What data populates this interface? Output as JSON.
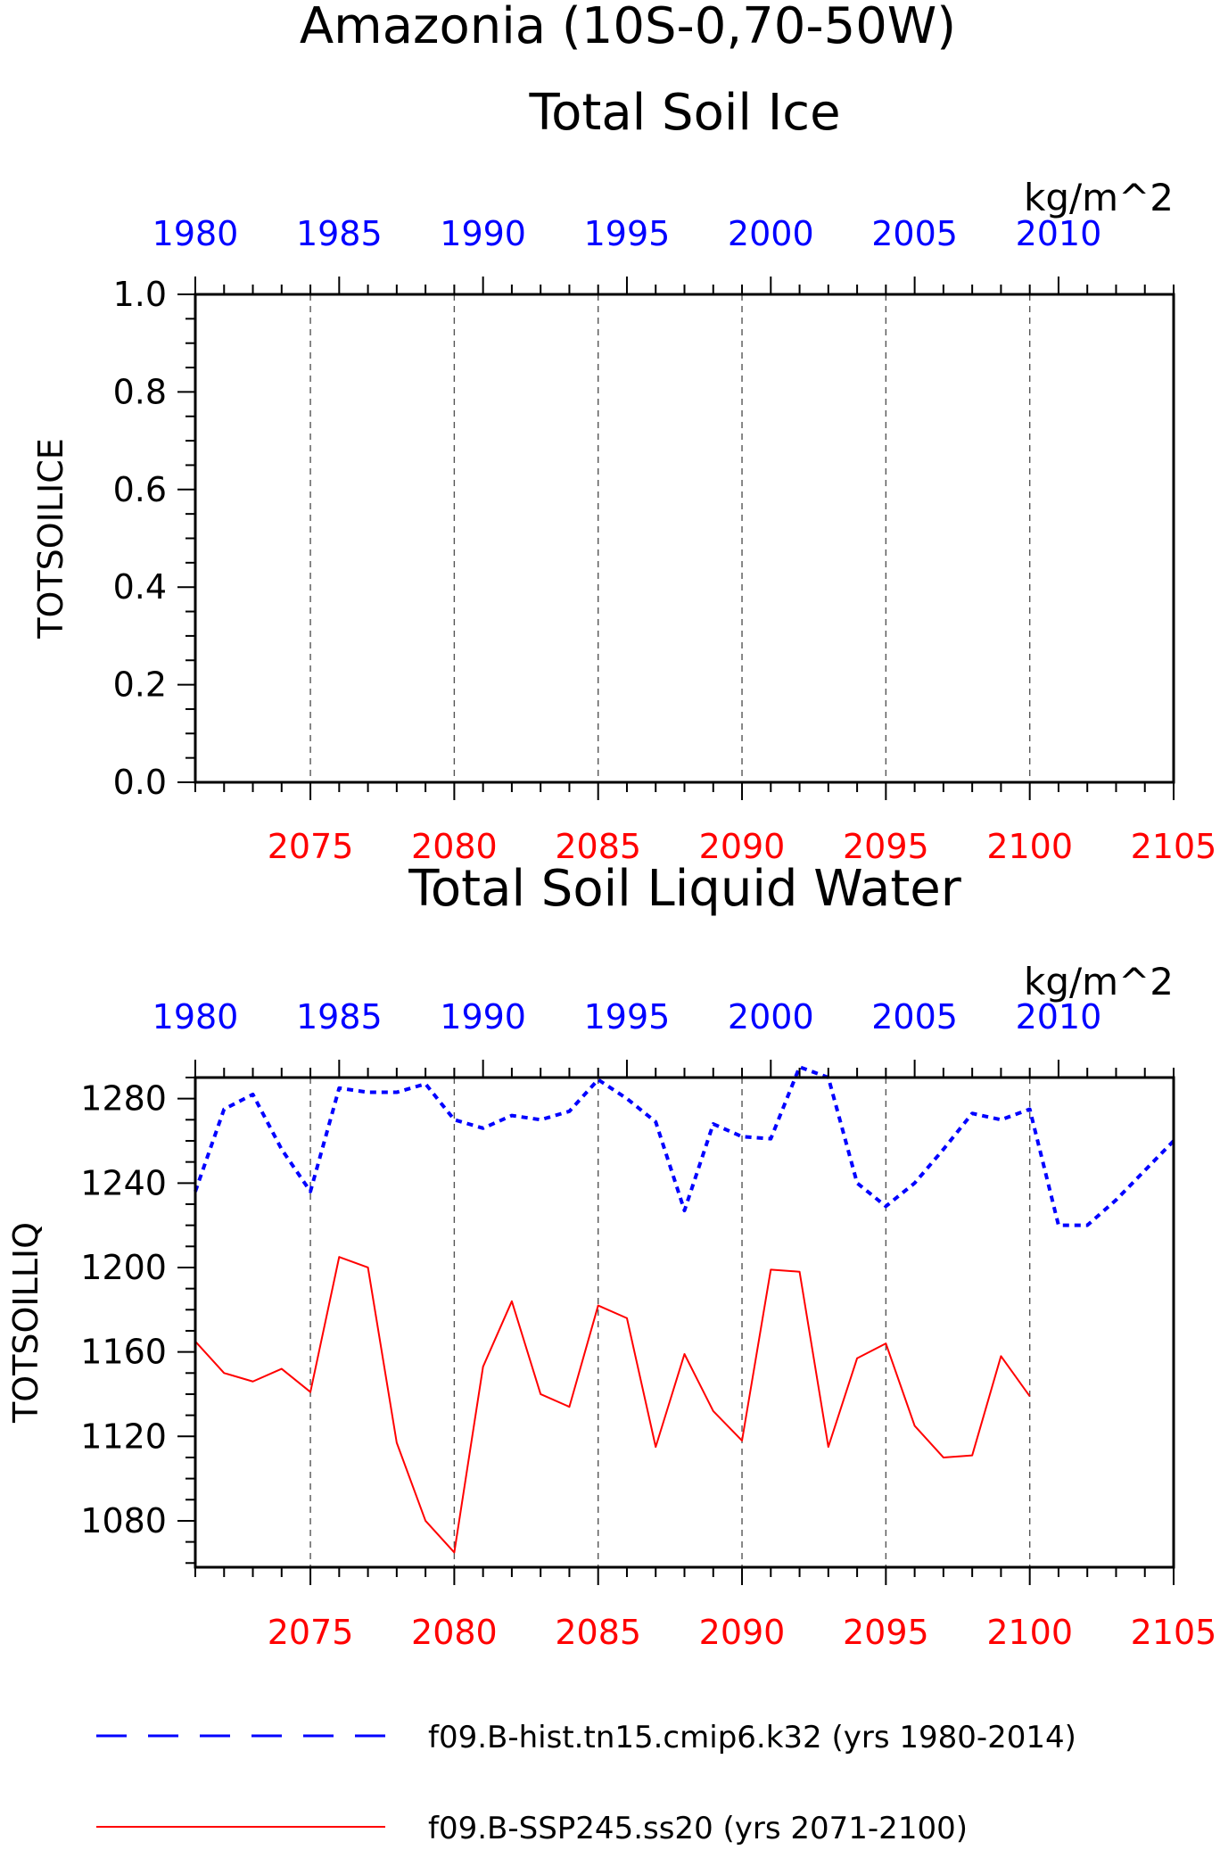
{
  "figure": {
    "region_title": "Amazonia (10S-0,70-50W)",
    "units": "kg/m^2"
  },
  "colors": {
    "hist": "#0000ff",
    "ssp": "#ff0000",
    "frame": "#000000",
    "grid": "#555555"
  },
  "legend": [
    {
      "label": "f09.B-hist.tn15.cmip6.k32 (yrs 1980-2014)",
      "color": "#0000ff",
      "style": "dashed"
    },
    {
      "label": "f09.B-SSP245.ss20 (yrs 2071-2100)",
      "color": "#ff0000",
      "style": "solid"
    }
  ],
  "chart_data": [
    {
      "type": "line",
      "title": "Total Soil Ice",
      "ylabel": "TOTSOILICE",
      "units": "kg/m^2",
      "top_axis": {
        "range": [
          1980,
          2014
        ],
        "ticks": [
          1980,
          1985,
          1990,
          1995,
          2000,
          2005,
          2010
        ]
      },
      "bottom_axis": {
        "range": [
          2071,
          2105
        ],
        "ticks": [
          2075,
          2080,
          2085,
          2090,
          2095,
          2100,
          2105
        ]
      },
      "ylim": [
        0,
        1
      ],
      "yticks": [
        "0.0",
        "0.2",
        "0.4",
        "0.6",
        "0.8",
        "1.0"
      ],
      "grid": "vertical dashed",
      "series": []
    },
    {
      "type": "line",
      "title": "Total Soil Liquid Water",
      "ylabel": "TOTSOILLIQ",
      "units": "kg/m^2",
      "top_axis": {
        "range": [
          1980,
          2014
        ],
        "ticks": [
          1980,
          1985,
          1990,
          1995,
          2000,
          2005,
          2010
        ]
      },
      "bottom_axis": {
        "range": [
          2071,
          2105
        ],
        "ticks": [
          2075,
          2080,
          2085,
          2090,
          2095,
          2100,
          2105
        ]
      },
      "ylim": [
        1058,
        1290
      ],
      "yticks": [
        "1080",
        "1120",
        "1160",
        "1200",
        "1240",
        "1280"
      ],
      "grid": "vertical dashed",
      "series": [
        {
          "name": "f09.B-hist.tn15.cmip6.k32 (yrs 1980-2014)",
          "axis": "top",
          "color": "#0000ff",
          "style": "dashed",
          "x": [
            1980,
            1981,
            1982,
            1983,
            1984,
            1985,
            1986,
            1987,
            1988,
            1989,
            1990,
            1991,
            1992,
            1993,
            1994,
            1995,
            1996,
            1997,
            1998,
            1999,
            2000,
            2001,
            2002,
            2003,
            2004,
            2005,
            2006,
            2007,
            2008,
            2009,
            2010,
            2011,
            2012,
            2013,
            2014
          ],
          "y": [
            1236,
            1275,
            1282,
            1256,
            1236,
            1285,
            1283,
            1283,
            1287,
            1270,
            1266,
            1272,
            1270,
            1274,
            1289,
            1280,
            1269,
            1227,
            1268,
            1262,
            1261,
            1295,
            1290,
            1240,
            1229,
            1240,
            1256,
            1273,
            1270,
            1275,
            1220,
            1220,
            1232,
            1246,
            1260
          ]
        },
        {
          "name": "f09.B-SSP245.ss20 (yrs 2071-2100)",
          "axis": "bottom",
          "color": "#ff0000",
          "style": "solid",
          "x": [
            2071,
            2072,
            2073,
            2074,
            2075,
            2076,
            2077,
            2078,
            2079,
            2080,
            2081,
            2082,
            2083,
            2084,
            2085,
            2086,
            2087,
            2088,
            2089,
            2090,
            2091,
            2092,
            2093,
            2094,
            2095,
            2096,
            2097,
            2098,
            2099,
            2100
          ],
          "y": [
            1165,
            1150,
            1146,
            1152,
            1141,
            1205,
            1200,
            1117,
            1080,
            1065,
            1153,
            1184,
            1140,
            1134,
            1182,
            1176,
            1115,
            1159,
            1132,
            1118,
            1199,
            1198,
            1115,
            1157,
            1164,
            1125,
            1110,
            1111,
            1158,
            1139
          ]
        }
      ]
    }
  ]
}
